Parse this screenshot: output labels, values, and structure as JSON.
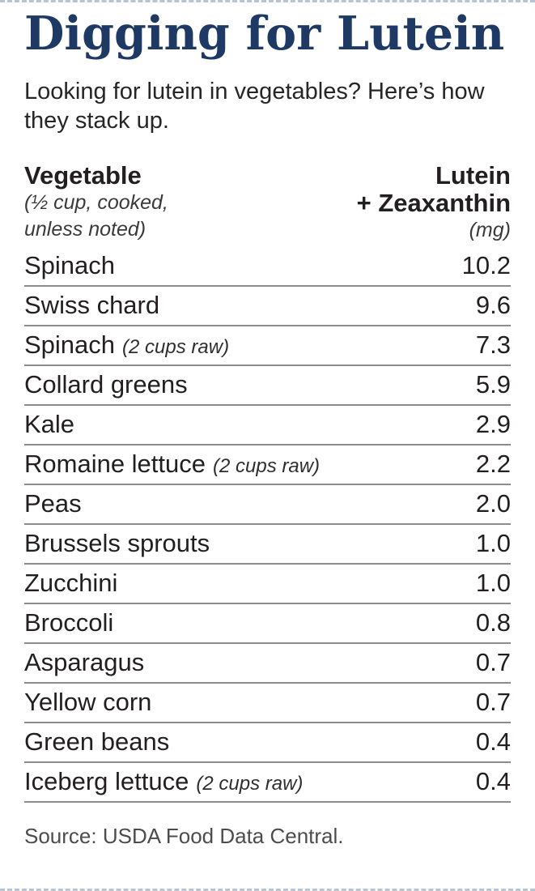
{
  "page": {
    "title": "Digging for Lutein",
    "subtitle": "Looking for lutein in vegetables? Here’s how they stack up.",
    "source": "Source: USDA Food Data Central.",
    "colors": {
      "title_navy": "#1e3a64",
      "body_text": "#231f20",
      "rule_gray": "#8c8c8c",
      "source_gray": "#4c4c4c"
    }
  },
  "table": {
    "header": {
      "col1_title": "Vegetable",
      "col1_note_line1": "(½ cup, cooked,",
      "col1_note_line2": "unless noted)",
      "col2_title_line1": "Lutein",
      "col2_title_line2": "+ Zeaxanthin",
      "col2_unit": "(mg)"
    },
    "rows": [
      {
        "name": "Spinach",
        "note": "",
        "value": "10.2"
      },
      {
        "name": "Swiss chard",
        "note": "",
        "value": "9.6"
      },
      {
        "name": "Spinach",
        "note": "(2 cups raw)",
        "value": "7.3"
      },
      {
        "name": "Collard greens",
        "note": "",
        "value": "5.9"
      },
      {
        "name": "Kale",
        "note": "",
        "value": "2.9"
      },
      {
        "name": "Romaine lettuce",
        "note": "(2 cups raw)",
        "value": "2.2"
      },
      {
        "name": "Peas",
        "note": "",
        "value": "2.0"
      },
      {
        "name": "Brussels sprouts",
        "note": "",
        "value": "1.0"
      },
      {
        "name": "Zucchini",
        "note": "",
        "value": "1.0"
      },
      {
        "name": "Broccoli",
        "note": "",
        "value": "0.8"
      },
      {
        "name": "Asparagus",
        "note": "",
        "value": "0.7"
      },
      {
        "name": "Yellow corn",
        "note": "",
        "value": "0.7"
      },
      {
        "name": "Green beans",
        "note": "",
        "value": "0.4"
      },
      {
        "name": "Iceberg lettuce",
        "note": "(2 cups raw)",
        "value": "0.4"
      }
    ]
  },
  "chart_data": {
    "type": "table",
    "title": "Digging for Lutein",
    "subtitle": "Looking for lutein in vegetables? Here’s how they stack up.",
    "columns": [
      "Vegetable (½ cup, cooked, unless noted)",
      "Lutein + Zeaxanthin (mg)"
    ],
    "categories": [
      "Spinach",
      "Swiss chard",
      "Spinach (2 cups raw)",
      "Collard greens",
      "Kale",
      "Romaine lettuce (2 cups raw)",
      "Peas",
      "Brussels sprouts",
      "Zucchini",
      "Broccoli",
      "Asparagus",
      "Yellow corn",
      "Green beans",
      "Iceberg lettuce (2 cups raw)"
    ],
    "values": [
      10.2,
      9.6,
      7.3,
      5.9,
      2.9,
      2.2,
      2.0,
      1.0,
      1.0,
      0.8,
      0.7,
      0.7,
      0.4,
      0.4
    ],
    "source": "Source: USDA Food Data Central."
  }
}
